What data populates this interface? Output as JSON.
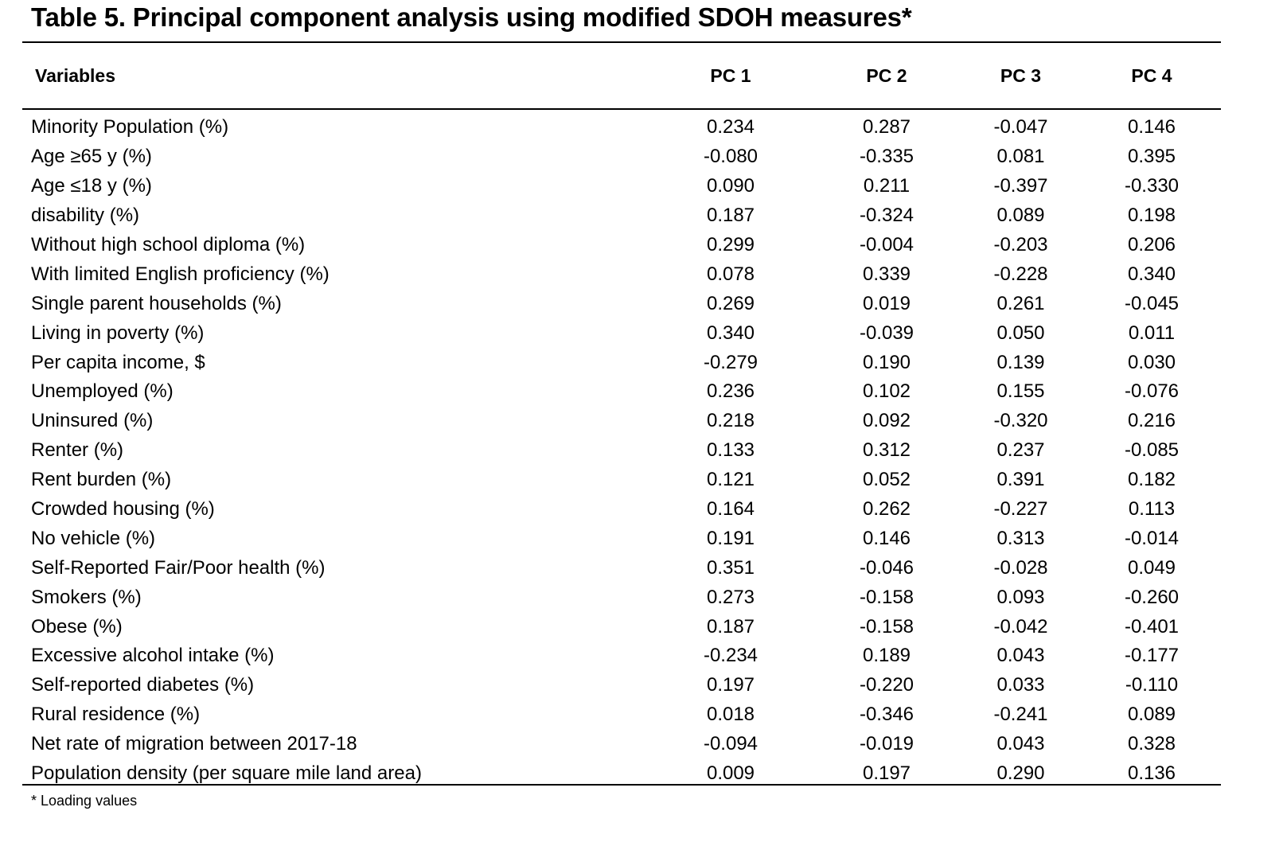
{
  "title": "Table 5. Principal component analysis using modified SDOH measures*",
  "table": {
    "headers": [
      "Variables",
      "PC 1",
      "PC 2",
      "PC 3",
      "PC 4"
    ],
    "rows": [
      {
        "label": "Minority Population (%)",
        "values": [
          "0.234",
          "0.287",
          "-0.047",
          "0.146"
        ]
      },
      {
        "label": "Age ≥65 y (%)",
        "values": [
          "-0.080",
          "-0.335",
          "0.081",
          "0.395"
        ]
      },
      {
        "label": "Age ≤18 y (%)",
        "values": [
          "0.090",
          "0.211",
          "-0.397",
          "-0.330"
        ]
      },
      {
        "label": "disability (%)",
        "values": [
          "0.187",
          "-0.324",
          "0.089",
          "0.198"
        ]
      },
      {
        "label": "Without high school diploma (%)",
        "values": [
          "0.299",
          "-0.004",
          "-0.203",
          "0.206"
        ]
      },
      {
        "label": "With limited English proficiency (%)",
        "values": [
          "0.078",
          "0.339",
          "-0.228",
          "0.340"
        ]
      },
      {
        "label": "Single parent households (%)",
        "values": [
          "0.269",
          "0.019",
          "0.261",
          "-0.045"
        ]
      },
      {
        "label": "Living in poverty (%)",
        "values": [
          "0.340",
          "-0.039",
          "0.050",
          "0.011"
        ]
      },
      {
        "label": "Per capita income, $",
        "values": [
          "-0.279",
          "0.190",
          "0.139",
          "0.030"
        ]
      },
      {
        "label": "Unemployed (%)",
        "values": [
          "0.236",
          "0.102",
          "0.155",
          "-0.076"
        ]
      },
      {
        "label": "Uninsured (%)",
        "values": [
          "0.218",
          "0.092",
          "-0.320",
          "0.216"
        ]
      },
      {
        "label": "Renter (%)",
        "values": [
          "0.133",
          "0.312",
          "0.237",
          "-0.085"
        ]
      },
      {
        "label": "Rent burden (%)",
        "values": [
          "0.121",
          "0.052",
          "0.391",
          "0.182"
        ]
      },
      {
        "label": "Crowded housing (%)",
        "values": [
          "0.164",
          "0.262",
          "-0.227",
          "0.113"
        ]
      },
      {
        "label": "No vehicle (%)",
        "values": [
          "0.191",
          "0.146",
          "0.313",
          "-0.014"
        ]
      },
      {
        "label": "Self-Reported Fair/Poor health (%)",
        "values": [
          "0.351",
          "-0.046",
          "-0.028",
          "0.049"
        ]
      },
      {
        "label": "Smokers (%)",
        "values": [
          "0.273",
          "-0.158",
          "0.093",
          "-0.260"
        ]
      },
      {
        "label": "Obese (%)",
        "values": [
          "0.187",
          "-0.158",
          "-0.042",
          "-0.401"
        ]
      },
      {
        "label": "Excessive alcohol intake (%)",
        "values": [
          "-0.234",
          "0.189",
          "0.043",
          "-0.177"
        ]
      },
      {
        "label": "Self-reported diabetes (%)",
        "values": [
          "0.197",
          "-0.220",
          "0.033",
          "-0.110"
        ]
      },
      {
        "label": "Rural residence (%)",
        "values": [
          "0.018",
          "-0.346",
          "-0.241",
          "0.089"
        ]
      },
      {
        "label": "Net rate of migration between 2017-18",
        "values": [
          "-0.094",
          "-0.019",
          "0.043",
          "0.328"
        ]
      },
      {
        "label": "Population density (per square mile land area)",
        "values": [
          "0.009",
          "0.197",
          "0.290",
          "0.136"
        ]
      }
    ]
  },
  "footnote": "* Loading values"
}
